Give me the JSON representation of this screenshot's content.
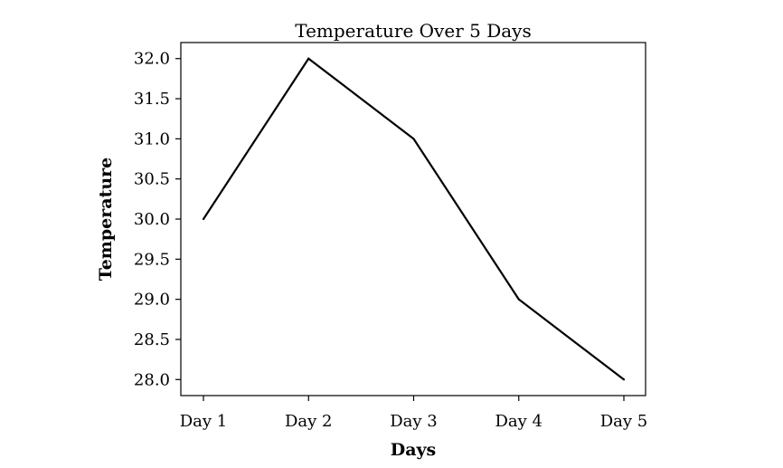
{
  "chart_data": {
    "type": "line",
    "title": "Temperature Over 5 Days",
    "xlabel": "Days",
    "ylabel": "Temperature",
    "categories": [
      "Day 1",
      "Day 2",
      "Day 3",
      "Day 4",
      "Day 5"
    ],
    "series": [
      {
        "name": "Temperature",
        "values": [
          30.0,
          32.0,
          31.0,
          29.0,
          28.0
        ]
      }
    ],
    "ylim": [
      27.8,
      32.2
    ],
    "yticks": [
      28.0,
      28.5,
      29.0,
      29.5,
      30.0,
      30.5,
      31.0,
      31.5,
      32.0
    ],
    "ytick_labels": [
      "28.0",
      "28.5",
      "29.0",
      "29.5",
      "30.0",
      "30.5",
      "31.0",
      "31.5",
      "32.0"
    ],
    "grid": false,
    "line_color": "#000000"
  }
}
